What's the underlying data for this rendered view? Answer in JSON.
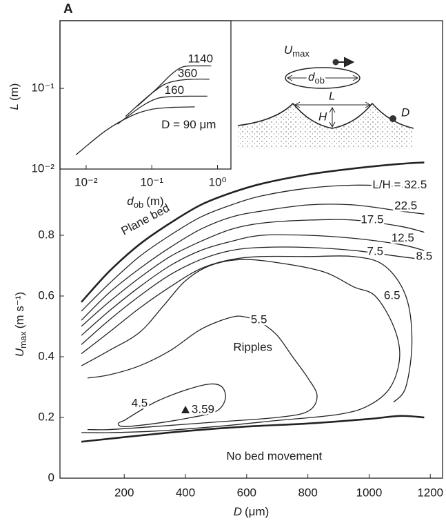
{
  "panel_label": "A",
  "schematic": {
    "velocity": {
      "symbol": "U",
      "sub": "max"
    },
    "orbital": {
      "symbol": "d",
      "sub": "ob"
    },
    "wavelength": "L",
    "height": "H",
    "grain": "D"
  },
  "chart_data": [
    {
      "type": "line",
      "x_label": {
        "symbol": "D",
        "unit": "(μm)"
      },
      "y_label": {
        "symbol": "U",
        "sub": "max",
        "unit": "(m s⁻¹)"
      },
      "xlim": [
        -10,
        1240
      ],
      "ylim": [
        0,
        1.5
      ],
      "xticks": [
        200,
        400,
        600,
        800,
        1000,
        1200
      ],
      "yticks": [
        0,
        0.2,
        0.4,
        0.6,
        0.8
      ],
      "color": "#222222",
      "annotations": [
        "Plane bed",
        "Ripples",
        "No bed movement"
      ],
      "series": [
        {
          "name": "L/H = 32.5",
          "x": [
            60,
            150,
            250,
            350,
            450,
            550,
            650,
            800,
            950,
            1100,
            1180
          ],
          "values": [
            0.55,
            0.64,
            0.73,
            0.8,
            0.86,
            0.9,
            0.93,
            0.955,
            0.965,
            0.96,
            0.95
          ]
        },
        {
          "name": "22.5",
          "x": [
            60,
            150,
            250,
            350,
            450,
            550,
            650,
            800,
            950,
            1100,
            1180
          ],
          "values": [
            0.52,
            0.61,
            0.69,
            0.76,
            0.82,
            0.86,
            0.88,
            0.9,
            0.9,
            0.88,
            0.87
          ]
        },
        {
          "name": "17.5",
          "x": [
            60,
            150,
            250,
            350,
            450,
            550,
            650,
            800,
            950,
            1100,
            1180
          ],
          "values": [
            0.5,
            0.58,
            0.66,
            0.73,
            0.78,
            0.82,
            0.84,
            0.85,
            0.85,
            0.83,
            0.81
          ]
        },
        {
          "name": "12.5",
          "x": [
            60,
            150,
            250,
            350,
            450,
            550,
            650,
            800,
            950,
            1100,
            1180
          ],
          "values": [
            0.47,
            0.55,
            0.63,
            0.7,
            0.75,
            0.78,
            0.8,
            0.8,
            0.79,
            0.77,
            0.75
          ]
        },
        {
          "name": "8.5",
          "x": [
            60,
            150,
            250,
            350,
            450,
            550,
            650,
            800,
            950,
            1100,
            1180
          ],
          "values": [
            0.44,
            0.52,
            0.6,
            0.67,
            0.72,
            0.75,
            0.76,
            0.76,
            0.75,
            0.73,
            0.72
          ]
        },
        {
          "name": "7.5",
          "x": [
            60,
            150,
            250,
            350,
            450,
            550,
            650,
            800,
            950,
            1050,
            1120,
            1140,
            1120,
            1080
          ],
          "values": [
            0.41,
            0.48,
            0.56,
            0.63,
            0.69,
            0.72,
            0.73,
            0.73,
            0.73,
            0.7,
            0.6,
            0.45,
            0.3,
            0.25
          ]
        },
        {
          "name": "6.5",
          "x": [
            60,
            150,
            250,
            330,
            400,
            480,
            580,
            700,
            850,
            950,
            1020,
            1080,
            1100,
            1070,
            1000,
            900,
            700,
            500,
            300,
            150,
            60
          ],
          "values": [
            0.37,
            0.42,
            0.48,
            0.57,
            0.65,
            0.7,
            0.72,
            0.71,
            0.68,
            0.63,
            0.6,
            0.5,
            0.4,
            0.3,
            0.24,
            0.21,
            0.19,
            0.17,
            0.155,
            0.15,
            0.15
          ]
        },
        {
          "name": "5.5",
          "x": [
            80,
            150,
            250,
            350,
            450,
            550,
            600,
            650,
            700,
            750,
            800,
            830,
            800,
            700,
            500,
            300,
            150,
            80
          ],
          "values": [
            0.33,
            0.34,
            0.37,
            0.42,
            0.49,
            0.53,
            0.53,
            0.51,
            0.47,
            0.4,
            0.33,
            0.27,
            0.22,
            0.2,
            0.185,
            0.17,
            0.16,
            0.16
          ]
        },
        {
          "name": "4.5",
          "x": [
            200,
            300,
            400,
            480,
            520,
            530,
            500,
            420,
            300,
            200,
            180,
            200
          ],
          "values": [
            0.19,
            0.25,
            0.29,
            0.31,
            0.3,
            0.26,
            0.22,
            0.2,
            0.18,
            0.17,
            0.18,
            0.19
          ]
        },
        {
          "name": "Plane bed",
          "line_width": 2.6,
          "x": [
            60,
            150,
            250,
            350,
            450,
            550,
            650,
            800,
            950,
            1100,
            1180
          ],
          "values": [
            0.58,
            0.68,
            0.77,
            0.84,
            0.9,
            0.94,
            0.97,
            1.0,
            1.02,
            1.035,
            1.04
          ]
        },
        {
          "name": "No bed movement",
          "line_width": 2.6,
          "x": [
            60,
            200,
            400,
            600,
            800,
            1000,
            1100,
            1180
          ],
          "values": [
            0.12,
            0.135,
            0.155,
            0.17,
            0.18,
            0.195,
            0.205,
            0.2
          ]
        },
        {
          "name": "3.59",
          "marker": "triangle",
          "x": [
            400
          ],
          "values": [
            0.225
          ]
        }
      ]
    },
    {
      "type": "line",
      "xlog": true,
      "ylog": true,
      "x_label": {
        "symbol": "d",
        "sub": "ob",
        "unit": "(m)"
      },
      "y_label": {
        "symbol": "L",
        "unit": "(m)"
      },
      "xlim": [
        0.004,
        1.6
      ],
      "ylim": [
        0.01,
        0.69
      ],
      "xticks": [
        {
          "value": 0.01,
          "label": "10⁻²"
        },
        {
          "value": 0.1,
          "label": "10⁻¹"
        },
        {
          "value": 1,
          "label": "10⁰"
        }
      ],
      "yticks": [
        {
          "value": 0.01,
          "label": "10⁻²"
        },
        {
          "value": 0.1,
          "label": "10⁻¹"
        }
      ],
      "color": "#222222",
      "series": [
        {
          "name": "D = 90 μm",
          "x": [
            0.007,
            0.02,
            0.05,
            0.1,
            0.2,
            0.45
          ],
          "values": [
            0.015,
            0.03,
            0.046,
            0.055,
            0.058,
            0.059
          ]
        },
        {
          "name": "160",
          "x": [
            0.03,
            0.07,
            0.12,
            0.2,
            0.4,
            0.7
          ],
          "values": [
            0.036,
            0.06,
            0.075,
            0.079,
            0.08,
            0.08
          ]
        },
        {
          "name": "360",
          "x": [
            0.04,
            0.08,
            0.15,
            0.25,
            0.45,
            0.75
          ],
          "values": [
            0.045,
            0.075,
            0.11,
            0.125,
            0.13,
            0.13
          ]
        },
        {
          "name": "1140",
          "x": [
            0.06,
            0.12,
            0.2,
            0.3,
            0.5,
            0.8
          ],
          "values": [
            0.06,
            0.1,
            0.15,
            0.185,
            0.19,
            0.19
          ]
        }
      ]
    }
  ]
}
